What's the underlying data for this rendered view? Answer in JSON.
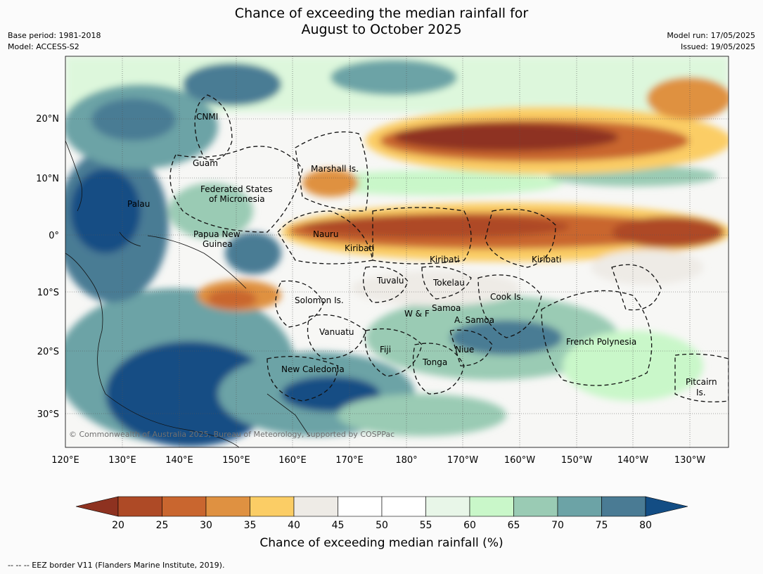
{
  "header": {
    "title_line1": "Chance of exceeding the median rainfall for",
    "title_line2": "August to October 2025",
    "base_period": "Base period: 1981-2018",
    "model": "Model: ACCESS-S2",
    "model_run": "Model run: 17/05/2025",
    "issued": "Issued: 19/05/2025"
  },
  "map": {
    "lon_ticks": [
      "120°E",
      "130°E",
      "140°E",
      "150°E",
      "160°E",
      "170°E",
      "180°",
      "170°W",
      "160°W",
      "150°W",
      "140°W",
      "130°W"
    ],
    "lat_ticks": [
      "20°N",
      "10°N",
      "0°",
      "10°S",
      "20°S",
      "30°S"
    ],
    "places": [
      "CNMI",
      "Guam",
      "Marshall Is.",
      "Federated States",
      "of Micronesia",
      "Palau",
      "Papua New",
      "Guinea",
      "Nauru",
      "Kiribati",
      "Kiribati",
      "Kiribati",
      "Tuvalu",
      "Tokelau",
      "Solomon Is.",
      "Cook Is.",
      "W & F",
      "Samoa",
      "A. Samoa",
      "Vanuatu",
      "Fiji",
      "Niue",
      "French Polynesia",
      "Tonga",
      "New Caledonia",
      "Pitcairn",
      "Is."
    ],
    "copyright": "© Commonwealth of Australia 2025, Bureau of Meteorology, supported by COSPPac"
  },
  "colorbar": {
    "ticks": [
      "20",
      "25",
      "30",
      "35",
      "40",
      "45",
      "50",
      "55",
      "60",
      "65",
      "70",
      "75",
      "80"
    ],
    "colors": [
      "#8e3220",
      "#ae4a26",
      "#c9662f",
      "#df9141",
      "#fbcd65",
      "#eeebe6",
      "#ffffff",
      "#ffffff",
      "#e8f6e8",
      "#c9f7c9",
      "#9acbb4",
      "#6ca3a6",
      "#4a7b94",
      "#134d84"
    ],
    "label": "Chance of exceeding median rainfall (%)"
  },
  "footnote": "--  --  -- EEZ border V11 (Flanders Marine Institute, 2019)."
}
